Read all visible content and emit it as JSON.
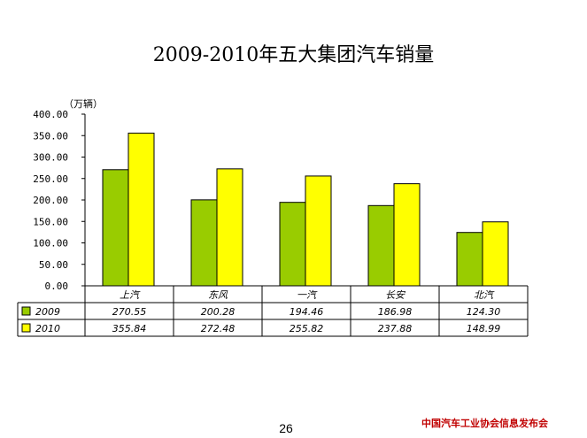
{
  "chart_data": {
    "type": "bar",
    "title": "2009-2010年五大集团汽车销量",
    "ylabel": "（万辆）",
    "categories": [
      "上汽",
      "东风",
      "一汽",
      "长安",
      "北汽"
    ],
    "series": [
      {
        "name": "2009",
        "values": [
          270.55,
          200.28,
          194.46,
          186.98,
          124.3
        ],
        "display": [
          "270.55",
          "200.28",
          "194.46",
          "186.98",
          "124.30"
        ],
        "color": "#99cc00"
      },
      {
        "name": "2010",
        "values": [
          355.84,
          272.48,
          255.82,
          237.88,
          148.99
        ],
        "display": [
          "355.84",
          "272.48",
          "255.82",
          "237.88",
          "148.99"
        ],
        "color": "#ffff00"
      }
    ],
    "ylim": [
      0,
      400
    ],
    "yticks": [
      "0.00",
      "50.00",
      "100.00",
      "150.00",
      "200.00",
      "250.00",
      "300.00",
      "350.00",
      "400.00"
    ],
    "grid": false,
    "legend": "data-table"
  },
  "page_number": "26",
  "source": "中国汽车工业协会信息发布会"
}
